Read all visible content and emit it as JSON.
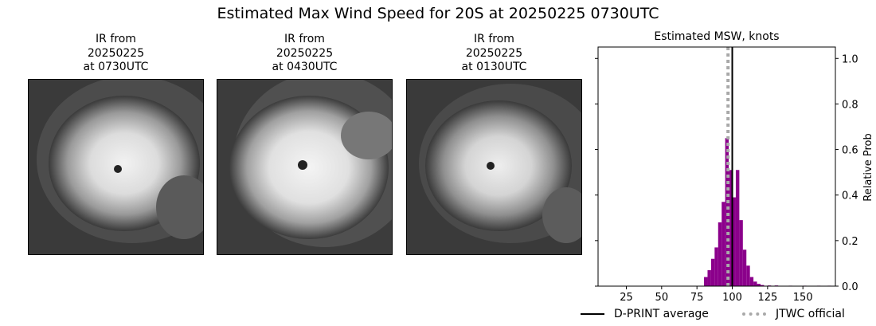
{
  "title": "Estimated Max Wind Speed for 20S at 20250225 0730UTC",
  "ir_panels": [
    {
      "line1": "IR from",
      "line2": "20250225",
      "line3": "at 0730UTC"
    },
    {
      "line1": "IR from",
      "line2": "20250225",
      "line3": "at 0430UTC"
    },
    {
      "line1": "IR from",
      "line2": "20250225",
      "line3": "at 0130UTC"
    }
  ],
  "chart_data": {
    "type": "bar",
    "title": "Estimated MSW, knots",
    "xlabel": "",
    "ylabel": "Relative Prob",
    "xlim": [
      5,
      173
    ],
    "ylim": [
      0,
      1.05
    ],
    "xticks": [
      25,
      50,
      75,
      100,
      125,
      150
    ],
    "yticks": [
      0.0,
      0.2,
      0.4,
      0.6,
      0.8,
      1.0
    ],
    "bin_width": 2.5,
    "bars": [
      {
        "x": 80,
        "value": 0.04
      },
      {
        "x": 82.5,
        "value": 0.07
      },
      {
        "x": 85,
        "value": 0.12
      },
      {
        "x": 87.5,
        "value": 0.17
      },
      {
        "x": 90,
        "value": 0.28
      },
      {
        "x": 92.5,
        "value": 0.37
      },
      {
        "x": 95,
        "value": 0.65
      },
      {
        "x": 97.5,
        "value": 0.51
      },
      {
        "x": 100,
        "value": 0.39
      },
      {
        "x": 102.5,
        "value": 0.51
      },
      {
        "x": 105,
        "value": 0.29
      },
      {
        "x": 107.5,
        "value": 0.16
      },
      {
        "x": 110,
        "value": 0.09
      },
      {
        "x": 112.5,
        "value": 0.04
      },
      {
        "x": 115,
        "value": 0.02
      },
      {
        "x": 117.5,
        "value": 0.01
      },
      {
        "x": 120,
        "value": 0.005
      },
      {
        "x": 125,
        "value": 0.003
      },
      {
        "x": 130,
        "value": 0.003
      },
      {
        "x": 140,
        "value": 0.002
      },
      {
        "x": 150,
        "value": 0.002
      },
      {
        "x": 160,
        "value": 0.002
      },
      {
        "x": 167.5,
        "value": 0.002
      }
    ],
    "dprint_average": 100,
    "jtwc_official": 97,
    "bar_color": "#8b008b",
    "dprint_color": "#000000",
    "jtwc_color": "#a9a9a9",
    "legend": {
      "dprint": "D-PRINT average",
      "jtwc": "JTWC official"
    }
  }
}
